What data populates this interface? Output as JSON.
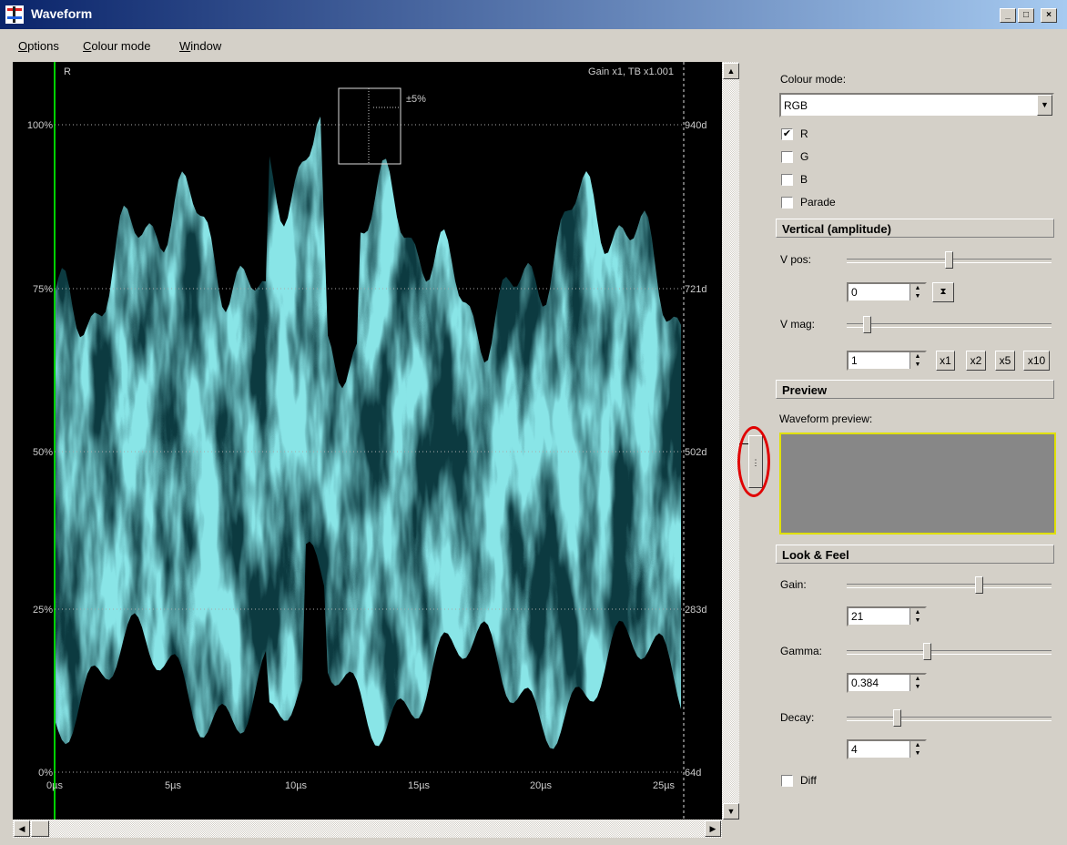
{
  "window": {
    "title": "Waveform"
  },
  "menu": [
    "Options",
    "Colour mode",
    "Window"
  ],
  "scope": {
    "channel": "R",
    "status": "Gain x1, TB x1.001",
    "zoom": "±5%",
    "left_scale": [
      "100%",
      "75%",
      "50%",
      "25%",
      "0%"
    ],
    "right_scale": [
      "940d",
      "721d",
      "502d",
      "283d",
      "64d"
    ],
    "time_scale": [
      "0µs",
      "5µs",
      "10µs",
      "15µs",
      "20µs",
      "25µs"
    ]
  },
  "panel": {
    "colour_mode_label": "Colour mode:",
    "colour_mode": "RGB",
    "channels": [
      {
        "label": "R",
        "checked": true
      },
      {
        "label": "G",
        "checked": false
      },
      {
        "label": "B",
        "checked": false
      },
      {
        "label": "Parade",
        "checked": false
      }
    ],
    "vertical": {
      "header": "Vertical (amplitude)",
      "vpos_label": "V pos:",
      "vpos": "0",
      "vmag_label": "V mag:",
      "vmag": "1",
      "mag_buttons": [
        "x1",
        "x2",
        "x5",
        "x10"
      ]
    },
    "preview": {
      "header": "Preview",
      "label": "Waveform preview:"
    },
    "look": {
      "header": "Look & Feel",
      "gain_label": "Gain:",
      "gain": "21",
      "gamma_label": "Gamma:",
      "gamma": "0.384",
      "decay_label": "Decay:",
      "decay": "4",
      "diff": {
        "label": "Diff",
        "checked": false
      }
    }
  }
}
